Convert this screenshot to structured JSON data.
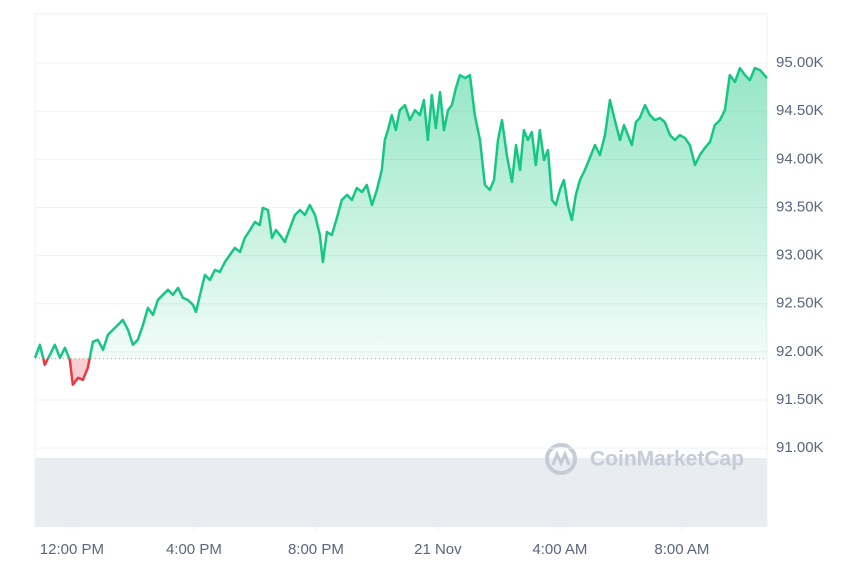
{
  "chart_data": {
    "type": "line",
    "watermark": "CoinMarketCap",
    "x": [
      -1.21,
      -1.05,
      -0.89,
      -0.72,
      -0.56,
      -0.39,
      -0.23,
      -0.07,
      0.03,
      0.2,
      0.36,
      0.52,
      0.69,
      0.85,
      1.02,
      1.18,
      1.34,
      1.51,
      1.67,
      1.84,
      2.0,
      2.16,
      2.33,
      2.49,
      2.66,
      2.82,
      2.98,
      3.15,
      3.31,
      3.48,
      3.64,
      3.8,
      3.97,
      4.07,
      4.2,
      4.36,
      4.52,
      4.69,
      4.85,
      5.02,
      5.18,
      5.34,
      5.51,
      5.67,
      5.84,
      6.0,
      6.16,
      6.26,
      6.43,
      6.56,
      6.69,
      6.82,
      6.98,
      7.15,
      7.31,
      7.48,
      7.64,
      7.8,
      7.97,
      8.13,
      8.23,
      8.36,
      8.52,
      8.69,
      8.85,
      9.02,
      9.18,
      9.34,
      9.51,
      9.67,
      9.84,
      10.0,
      10.16,
      10.26,
      10.36,
      10.49,
      10.62,
      10.75,
      10.92,
      11.08,
      11.25,
      11.41,
      11.54,
      11.67,
      11.8,
      11.93,
      12.07,
      12.2,
      12.33,
      12.46,
      12.59,
      12.72,
      12.89,
      13.05,
      13.21,
      13.38,
      13.54,
      13.7,
      13.84,
      13.97,
      14.1,
      14.26,
      14.43,
      14.56,
      14.69,
      14.82,
      14.95,
      15.08,
      15.21,
      15.34,
      15.48,
      15.61,
      15.74,
      15.87,
      16.0,
      16.13,
      16.26,
      16.39,
      16.52,
      16.66,
      16.82,
      16.98,
      17.15,
      17.31,
      17.48,
      17.64,
      17.8,
      17.97,
      18.1,
      18.23,
      18.36,
      18.49,
      18.62,
      18.79,
      18.95,
      19.11,
      19.28,
      19.44,
      19.61,
      19.77,
      19.93,
      20.1,
      20.26,
      20.43,
      20.59,
      20.75,
      20.92,
      21.08,
      21.25,
      21.41,
      21.57,
      21.74,
      21.9,
      22.07,
      22.23,
      22.39,
      22.56,
      22.79
    ],
    "series": [
      {
        "color": "#16c784",
        "down_color": "#ea3943",
        "values": [
          91938,
          92073,
          91865,
          91969,
          92073,
          91938,
          92042,
          91917,
          91657,
          91730,
          91709,
          91834,
          92104,
          92125,
          92021,
          92176,
          92228,
          92280,
          92332,
          92228,
          92073,
          92125,
          92280,
          92457,
          92384,
          92540,
          92592,
          92644,
          92592,
          92664,
          92561,
          92540,
          92488,
          92415,
          92592,
          92799,
          92747,
          92851,
          92830,
          92934,
          93007,
          93080,
          93038,
          93183,
          93266,
          93349,
          93318,
          93495,
          93474,
          93183,
          93266,
          93214,
          93142,
          93287,
          93422,
          93474,
          93422,
          93526,
          93422,
          93214,
          92934,
          93246,
          93214,
          93391,
          93578,
          93630,
          93578,
          93702,
          93661,
          93733,
          93526,
          93682,
          93889,
          94201,
          94304,
          94460,
          94304,
          94512,
          94564,
          94408,
          94512,
          94460,
          94616,
          94201,
          94668,
          94325,
          94699,
          94304,
          94512,
          94564,
          94740,
          94875,
          94844,
          94875,
          94460,
          94201,
          93733,
          93682,
          93785,
          94201,
          94408,
          94045,
          93765,
          94149,
          93889,
          94304,
          94201,
          94284,
          93941,
          94304,
          93993,
          94097,
          93578,
          93526,
          93682,
          93785,
          93526,
          93370,
          93630,
          93785,
          93889,
          94014,
          94149,
          94045,
          94252,
          94616,
          94408,
          94201,
          94356,
          94252,
          94149,
          94387,
          94429,
          94564,
          94460,
          94408,
          94429,
          94387,
          94252,
          94201,
          94252,
          94221,
          94149,
          93941,
          94045,
          94118,
          94180,
          94356,
          94408,
          94512,
          94875,
          94803,
          94948,
          94875,
          94823,
          94948,
          94927,
          94844
        ]
      }
    ],
    "baseline": 91930,
    "xlim": [
      -1.21,
      22.79
    ],
    "xticks": [
      {
        "value": 0,
        "label": "12:00 PM"
      },
      {
        "value": 4,
        "label": "4:00 PM"
      },
      {
        "value": 8,
        "label": "8:00 PM"
      },
      {
        "value": 12,
        "label": "21 Nov"
      },
      {
        "value": 16,
        "label": "4:00 AM"
      },
      {
        "value": 20,
        "label": "8:00 AM"
      }
    ],
    "ylim": [
      90180,
      95510
    ],
    "yticks": [
      {
        "value": 91000,
        "label": "91.00K"
      },
      {
        "value": 91500,
        "label": "91.50K"
      },
      {
        "value": 92000,
        "label": "92.00K"
      },
      {
        "value": 92500,
        "label": "92.50K"
      },
      {
        "value": 93000,
        "label": "93.00K"
      },
      {
        "value": 93500,
        "label": "93.50K"
      },
      {
        "value": 94000,
        "label": "94.00K"
      },
      {
        "value": 94500,
        "label": "94.50K"
      },
      {
        "value": 95000,
        "label": "95.00K"
      }
    ],
    "grid": true
  }
}
